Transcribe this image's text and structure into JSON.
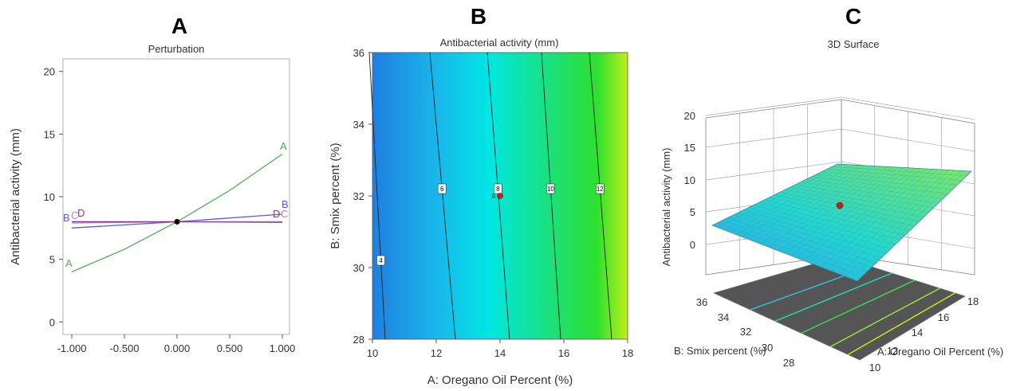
{
  "chart_data": [
    {
      "panel": "A",
      "type": "line",
      "title": "Perturbation",
      "xlabel": "",
      "ylabel": "Antibacterial activity (mm)",
      "xlim": [
        -1,
        1
      ],
      "ylim": [
        -1,
        21
      ],
      "x_ticks": [
        "-1.000",
        "-0.500",
        "0.000",
        "0.500",
        "1.000"
      ],
      "y_ticks": [
        "0",
        "5",
        "10",
        "15",
        "20"
      ],
      "series": [
        {
          "name": "A",
          "color": "#4caf50",
          "x": [
            -1,
            -0.5,
            0,
            0.5,
            1
          ],
          "values": [
            4.0,
            5.8,
            8.0,
            10.5,
            13.4
          ]
        },
        {
          "name": "B",
          "color": "#5b5bd6",
          "x": [
            -1,
            0,
            1
          ],
          "values": [
            7.5,
            8.0,
            8.6
          ]
        },
        {
          "name": "C",
          "color": "#9e8bbf",
          "x": [
            -1,
            0,
            1
          ],
          "values": [
            7.9,
            8.0,
            8.0
          ]
        },
        {
          "name": "D",
          "color": "#8b3a8b",
          "x": [
            -1,
            0,
            1
          ],
          "values": [
            8.0,
            8.0,
            7.95
          ]
        }
      ],
      "center_point": {
        "x": 0,
        "y": 8.0
      },
      "curve_labels": {
        "left": [
          {
            "text": "A",
            "color": "#4caf50"
          },
          {
            "text": "B",
            "color": "#5b5bd6"
          },
          {
            "text": "C",
            "color": "#9e8bbf"
          },
          {
            "text": "D",
            "color": "#8b3a8b"
          }
        ],
        "right": [
          {
            "text": "A",
            "color": "#4caf50"
          },
          {
            "text": "B",
            "color": "#5b5bd6"
          },
          {
            "text": "D",
            "color": "#8b3a8b"
          },
          {
            "text": "C",
            "color": "#9e8bbf"
          }
        ]
      }
    },
    {
      "panel": "B",
      "type": "heatmap",
      "title": "Antibacterial activity (mm)",
      "xlabel": "A: Oregano Oil Percent (%)",
      "ylabel": "B: Smix percent (%)",
      "xlim": [
        10,
        18
      ],
      "ylim": [
        28,
        36
      ],
      "x_ticks": [
        "10",
        "12",
        "14",
        "16",
        "18"
      ],
      "y_ticks": [
        "28",
        "30",
        "32",
        "34",
        "36"
      ],
      "contours": [
        {
          "level": "4",
          "x_bottom": 10.4,
          "x_top": 9.9
        },
        {
          "level": "6",
          "x_bottom": 12.6,
          "x_top": 11.8
        },
        {
          "level": "8",
          "x_bottom": 14.3,
          "x_top": 13.6
        },
        {
          "level": "10",
          "x_bottom": 15.9,
          "x_top": 15.3
        },
        {
          "level": "12",
          "x_bottom": 17.5,
          "x_top": 16.8
        }
      ],
      "design_point": {
        "x": 14,
        "y": 32,
        "label": "6"
      },
      "colors": {
        "low": "#1e7fe0",
        "mid": "#00e8e0",
        "high": "#b8f020"
      }
    },
    {
      "panel": "C",
      "type": "3d-surface",
      "title": "3D Surface",
      "zlabel": "Antibacterial activity (mm)",
      "xlabel": "A: Oregano Oil Percent (%)",
      "ylabel": "B: Smix percent (%)",
      "z_ticks": [
        "0",
        "5",
        "10",
        "15",
        "20"
      ],
      "x_ticks": [
        "10",
        "12",
        "14",
        "16",
        "18"
      ],
      "y_ticks": [
        "28",
        "30",
        "32",
        "34",
        "36"
      ],
      "design_point": {
        "x": 14,
        "y": 32,
        "z": 8.0
      }
    }
  ],
  "panel_letters": [
    "A",
    "B",
    "C"
  ]
}
